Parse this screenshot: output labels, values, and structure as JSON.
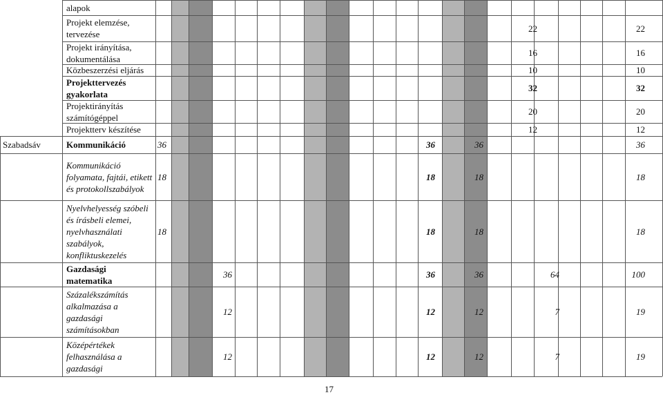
{
  "table": {
    "rows": [
      {
        "label": "alapok",
        "label_style": "normal",
        "values": [
          null,
          null,
          null,
          null,
          null,
          null,
          null
        ]
      },
      {
        "label": "Projekt elemzése, tervezése",
        "label_style": "normal",
        "values": [
          null,
          null,
          null,
          null,
          22,
          null,
          22
        ]
      },
      {
        "label": "Projekt irányítása, dokumentálása",
        "label_style": "normal",
        "values": [
          null,
          null,
          null,
          null,
          16,
          null,
          16
        ]
      },
      {
        "label": "Közbeszerzési eljárás",
        "label_style": "normal",
        "values": [
          null,
          null,
          null,
          null,
          10,
          null,
          10
        ]
      },
      {
        "label": "Projekttervezés gyakorlata",
        "label_style": "bold",
        "value_style": "bold",
        "values": [
          null,
          null,
          null,
          null,
          32,
          null,
          32
        ]
      },
      {
        "label": "Projektirányítás számítógéppel",
        "label_style": "normal",
        "values": [
          null,
          null,
          null,
          null,
          20,
          null,
          20
        ]
      },
      {
        "label": "Projektterv készítése",
        "label_style": "normal",
        "values": [
          null,
          null,
          null,
          null,
          12,
          null,
          12
        ]
      },
      {
        "section": "Szabadsáv",
        "label": "Kommunikáció",
        "label_style": "bold",
        "values": [
          36,
          null,
          36,
          36,
          null,
          null,
          36
        ]
      },
      {
        "label": "Kommunikáció folyamata, fajtái, etikett és protokollszabályok",
        "label_style": "italic",
        "values": [
          18,
          null,
          18,
          18,
          null,
          null,
          18
        ]
      },
      {
        "label": "Nyelvhelyesség szóbeli és írásbeli elemei, nyelvhasználati szabályok, konfliktuskezelés",
        "label_style": "italic",
        "values": [
          18,
          null,
          18,
          18,
          null,
          null,
          18
        ]
      },
      {
        "label": "Gazdasági matematika",
        "label_style": "bold",
        "values": [
          null,
          36,
          36,
          36,
          null,
          64,
          100
        ]
      },
      {
        "label": "Százalékszámítás alkalmazása a gazdasági számításokban",
        "label_style": "italic",
        "values": [
          null,
          12,
          12,
          12,
          null,
          7,
          19
        ]
      },
      {
        "label": "Középértékek felhasználása a gazdasági",
        "label_style": "italic",
        "values": [
          null,
          12,
          12,
          12,
          null,
          7,
          19
        ]
      }
    ]
  },
  "footer": {
    "page_number": "17"
  }
}
